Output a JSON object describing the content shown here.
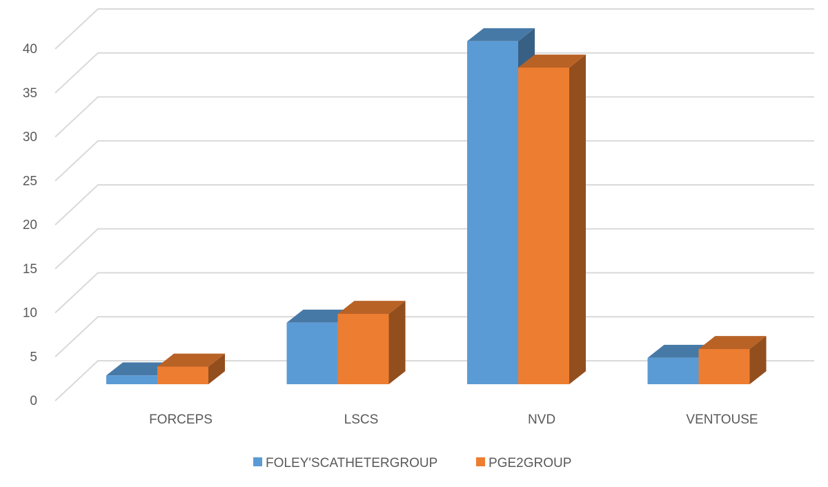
{
  "chart_data": {
    "type": "bar",
    "categories": [
      "FORCEPS",
      "LSCS",
      "NVD",
      "VENTOUSE"
    ],
    "series": [
      {
        "name": "FOLEY'SCATHETERGROUP",
        "values": [
          1,
          7,
          39,
          3
        ],
        "color": "#5B9BD5"
      },
      {
        "name": "PGE2GROUP",
        "values": [
          2,
          8,
          36,
          4
        ],
        "color": "#ED7D31"
      }
    ],
    "title": "",
    "xlabel": "",
    "ylabel": "",
    "ylim": [
      0,
      40
    ],
    "yticks": [
      "0",
      "5",
      "10",
      "15",
      "20",
      "25",
      "30",
      "35",
      "40"
    ],
    "grid": true,
    "legend_position": "bottom",
    "style": "3d-clustered-column"
  }
}
